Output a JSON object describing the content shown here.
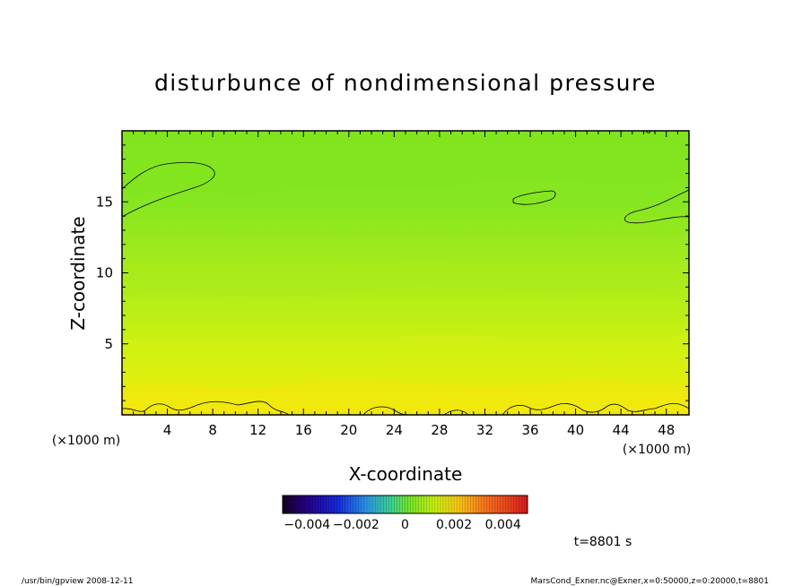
{
  "chart_data": {
    "type": "heatmap",
    "title": "disturbunce of nondimensional pressure",
    "xlabel": "X-coordinate",
    "ylabel": "Z-coordinate",
    "x_unit": "(×1000 m)",
    "y_unit": "(×1000 m)",
    "xlim": [
      0,
      50
    ],
    "ylim": [
      0,
      20
    ],
    "x_ticks": [
      "4",
      "8",
      "12",
      "16",
      "20",
      "24",
      "28",
      "32",
      "36",
      "40",
      "44",
      "48"
    ],
    "y_ticks": [
      "5",
      "10",
      "15"
    ],
    "colorbar": {
      "tick_labels": [
        "−0.004",
        "−0.002",
        "0",
        "0.002",
        "0.004"
      ],
      "min": -0.005,
      "max": 0.005
    },
    "time_label": "t=8801 s",
    "field_description": "Values near 0 throughout; slightly negative (green) aloft, slightly positive (yellow) near the surface",
    "contour_levels_shown": [
      "-0.001",
      "0.001"
    ]
  },
  "footer": {
    "left": "/usr/bin/gpview   2008-12-11",
    "right": "MarsCond_Exner.nc@Exner,x=0:50000,z=0:20000,t=8801"
  },
  "colors": {
    "field_top": "#78e61e",
    "field_mid": "#b4f014",
    "field_bottom": "#f2ea0e",
    "frame": "#000000"
  }
}
